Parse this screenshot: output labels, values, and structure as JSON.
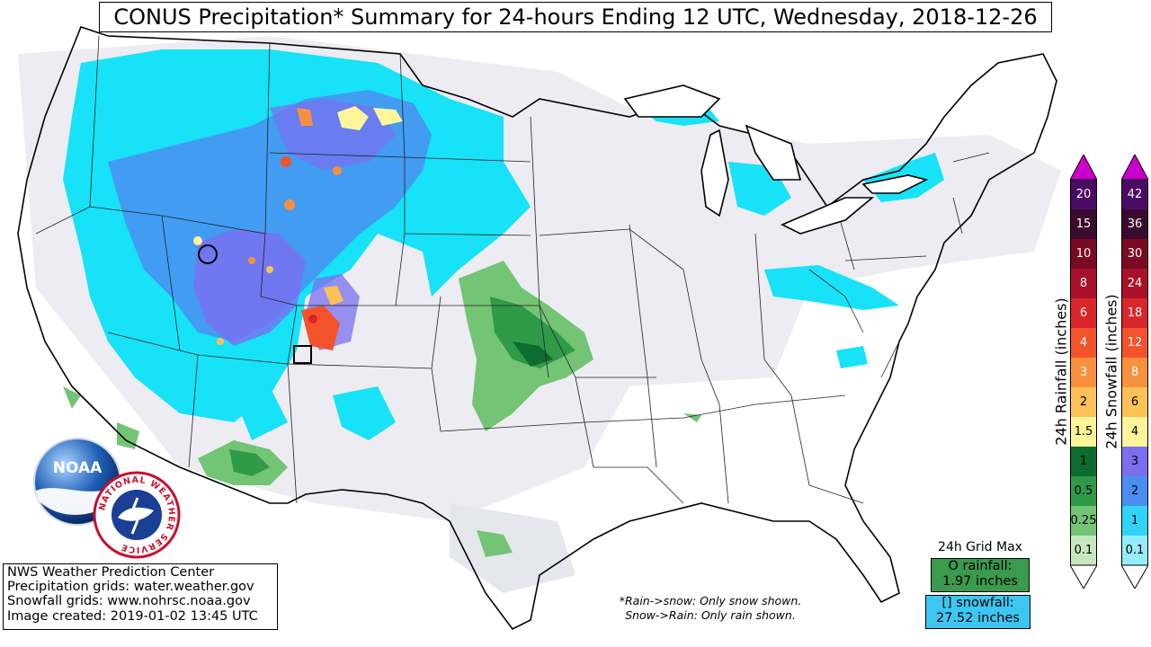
{
  "title": "CONUS Precipitation* Summary for 24-hours Ending 12 UTC, Wednesday, 2018-12-26",
  "info": {
    "line1": "NWS Weather Prediction Center",
    "line2": "Precipitation grids: water.weather.gov",
    "line3": "Snowfall grids: www.nohrsc.noaa.gov",
    "line4": "Image created: 2019-01-02 13:45 UTC"
  },
  "note": {
    "line1": "*Rain->snow: Only snow shown.",
    "line2": "Snow->Rain: Only rain shown."
  },
  "grid_max": {
    "label": "24h Grid Max",
    "rain_line1": "O rainfall:",
    "rain_line2": "1.97 inches",
    "snow_line1": "[] snowfall:",
    "snow_line2": "27.52 inches"
  },
  "logos": {
    "noaa_text": "NOAA",
    "nws_text": "NATIONAL WEATHER SERVICE"
  },
  "rain_legend": {
    "title": "24h Rainfall (inches)",
    "levels": [
      {
        "label": "20",
        "color": "#4b0a63",
        "text_color": "#ffffff"
      },
      {
        "label": "15",
        "color": "#3a0b2e",
        "text_color": "#ffffff"
      },
      {
        "label": "10",
        "color": "#7a0a23",
        "text_color": "#ffffff"
      },
      {
        "label": "8",
        "color": "#a9102a",
        "text_color": "#ffffff"
      },
      {
        "label": "6",
        "color": "#d8262a",
        "text_color": "#ffffff"
      },
      {
        "label": "4",
        "color": "#f2532a",
        "text_color": "#ffffff"
      },
      {
        "label": "3",
        "color": "#f8913d",
        "text_color": "#ffffff"
      },
      {
        "label": "2",
        "color": "#fdc157",
        "text_color": "#000000"
      },
      {
        "label": "1.5",
        "color": "#fef49a",
        "text_color": "#000000"
      },
      {
        "label": "1",
        "color": "#0d6b2f",
        "text_color": "#000000"
      },
      {
        "label": "0.5",
        "color": "#2f9a48",
        "text_color": "#000000"
      },
      {
        "label": "0.25",
        "color": "#74c476",
        "text_color": "#000000"
      },
      {
        "label": "0.1",
        "color": "#c7e7c0",
        "text_color": "#000000"
      }
    ],
    "top_color": "#cc00cc",
    "bottom_color": "#ffffff"
  },
  "snow_legend": {
    "title": "24h Snowfall (inches)",
    "levels": [
      {
        "label": "42",
        "color": "#4b0a63",
        "text_color": "#ffffff"
      },
      {
        "label": "36",
        "color": "#3a0b2e",
        "text_color": "#ffffff"
      },
      {
        "label": "30",
        "color": "#7a0a23",
        "text_color": "#ffffff"
      },
      {
        "label": "24",
        "color": "#a9102a",
        "text_color": "#ffffff"
      },
      {
        "label": "18",
        "color": "#d8262a",
        "text_color": "#ffffff"
      },
      {
        "label": "12",
        "color": "#f2532a",
        "text_color": "#ffffff"
      },
      {
        "label": "8",
        "color": "#f8913d",
        "text_color": "#ffffff"
      },
      {
        "label": "6",
        "color": "#fdc157",
        "text_color": "#000000"
      },
      {
        "label": "4",
        "color": "#fef49a",
        "text_color": "#000000"
      },
      {
        "label": "3",
        "color": "#7b6ff0",
        "text_color": "#000000"
      },
      {
        "label": "2",
        "color": "#4a8ff0",
        "text_color": "#000000"
      },
      {
        "label": "1",
        "color": "#31d4f8",
        "text_color": "#000000"
      },
      {
        "label": "0.1",
        "color": "#95ecfb",
        "text_color": "#000000"
      }
    ],
    "top_color": "#cc00cc",
    "bottom_color": "#ffffff"
  }
}
